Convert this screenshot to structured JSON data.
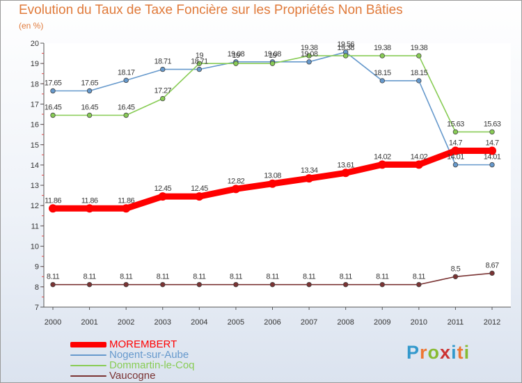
{
  "chart_data": {
    "type": "line",
    "title": "Evolution du Taux de Taxe Foncière sur les Propriétés Non Bâties",
    "ylabel": "(en %)",
    "xlabel": "",
    "ylim": [
      7,
      20
    ],
    "yticks": [
      "7",
      "8",
      "9",
      "10",
      "11",
      "12",
      "13",
      "14",
      "15",
      "16",
      "17",
      "18",
      "19",
      "20"
    ],
    "x": [
      "2000",
      "2001",
      "2002",
      "2003",
      "2004",
      "2005",
      "2006",
      "2007",
      "2008",
      "2009",
      "2010",
      "2011",
      "2012"
    ],
    "series": [
      {
        "name": "MOREMBERT",
        "color": "#ff0000",
        "values": [
          11.86,
          11.86,
          11.86,
          12.45,
          12.45,
          12.82,
          13.08,
          13.34,
          13.61,
          14.02,
          14.02,
          14.7,
          14.7
        ],
        "labels": [
          "11.86",
          "11.86",
          "11.86",
          "12.45",
          "12.45",
          "12.82",
          "13.08",
          "13.34",
          "13.61",
          "14.02",
          "14.02",
          "14.7",
          "14.7"
        ]
      },
      {
        "name": "Nogent-sur-Aube",
        "color": "#6699cc",
        "values": [
          17.65,
          17.65,
          18.17,
          18.71,
          18.71,
          19.08,
          19.08,
          19.08,
          19.56,
          18.15,
          18.15,
          14.01,
          14.01
        ],
        "labels": [
          "17.65",
          "17.65",
          "18.17",
          "18.71",
          "18.71",
          "19.08",
          "19.08",
          "19.08",
          "19.56",
          "18.15",
          "18.15",
          "14.01",
          "14.01"
        ]
      },
      {
        "name": "Dommartin-le-Coq",
        "color": "#88cc55",
        "values": [
          16.45,
          16.45,
          16.45,
          17.27,
          19,
          19,
          19,
          19.38,
          19.38,
          19.38,
          19.38,
          15.63,
          15.63
        ],
        "labels": [
          "16.45",
          "16.45",
          "16.45",
          "17.27",
          "19",
          "19",
          "19",
          "19.38",
          "19.38",
          "19.38",
          "19.38",
          "15.63",
          "15.63"
        ]
      },
      {
        "name": "Vaucogne",
        "color": "#7a3333",
        "values": [
          8.11,
          8.11,
          8.11,
          8.11,
          8.11,
          8.11,
          8.11,
          8.11,
          8.11,
          8.11,
          8.11,
          8.5,
          8.67
        ],
        "labels": [
          "8.11",
          "8.11",
          "8.11",
          "8.11",
          "8.11",
          "8.11",
          "8.11",
          "8.11",
          "8.11",
          "8.11",
          "8.11",
          "8.5",
          "8.67"
        ]
      }
    ],
    "grid": false,
    "legend": "bottom-left"
  },
  "logo": {
    "letters": [
      "P",
      "r",
      "o",
      "x",
      "i",
      "t",
      "i"
    ],
    "colors": [
      "#3399cc",
      "#ee7733",
      "#88bb33",
      "#cc3333",
      "#3399cc",
      "#ee7733",
      "#88bb33"
    ]
  }
}
